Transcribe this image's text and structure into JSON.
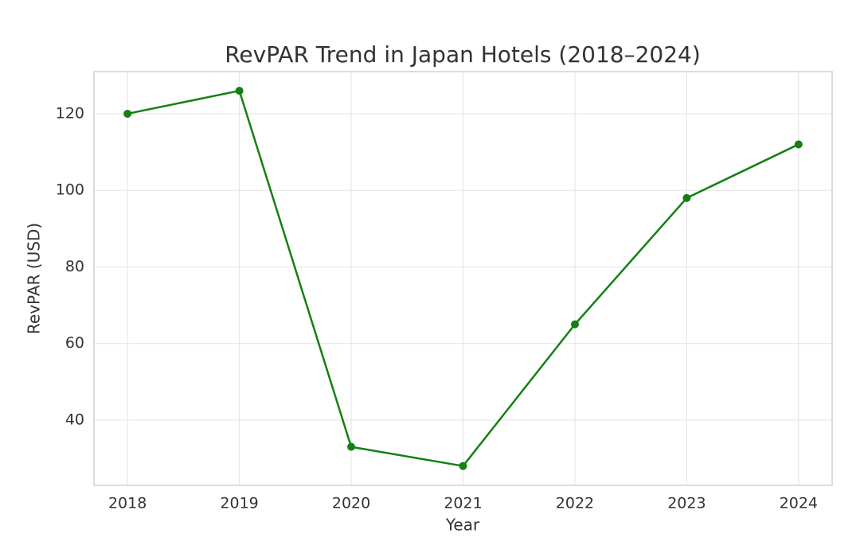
{
  "chart_data": {
    "type": "line",
    "title": "RevPAR Trend in Japan Hotels (2018–2024)",
    "x_label": "Year",
    "y_label": "RevPAR (USD)",
    "x": [
      2018,
      2019,
      2020,
      2021,
      2022,
      2023,
      2024
    ],
    "series": [
      {
        "name": "RevPAR",
        "color": "#138013",
        "values": [
          120,
          126,
          33,
          28,
          65,
          98,
          112
        ]
      }
    ],
    "xlim": [
      2017.7,
      2024.3
    ],
    "xticks": [
      2018,
      2019,
      2020,
      2021,
      2022,
      2023,
      2024
    ],
    "ylim": [
      22.95,
      131.0
    ],
    "yticks": [
      40,
      60,
      80,
      100,
      120
    ],
    "grid": true
  }
}
